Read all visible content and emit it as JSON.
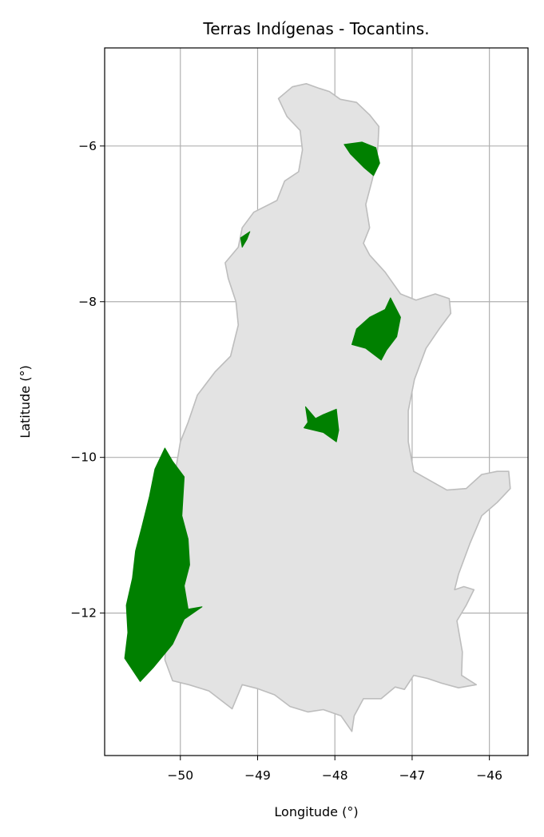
{
  "chart_data": {
    "type": "map",
    "title": "Terras Indígenas - Tocantins.",
    "xlabel": "Longitude (°)",
    "ylabel": "Latitude (°)",
    "xlim": [
      -50.98,
      -45.5
    ],
    "ylim": [
      -13.83,
      -4.74
    ],
    "xticks": [
      -50,
      -49,
      -48,
      -47,
      -46
    ],
    "xtick_labels": [
      "−50",
      "−49",
      "−48",
      "−47",
      "−46"
    ],
    "yticks": [
      -6,
      -8,
      -10,
      -12
    ],
    "ytick_labels": [
      "−6",
      "−8",
      "−10",
      "−12"
    ],
    "grid": true,
    "state_fill": "#e3e3e3",
    "state_edge": "#bdbdbd",
    "territory_fill": "#008000",
    "state_outline": [
      [
        -48.73,
        -5.39
      ],
      [
        -48.55,
        -5.24
      ],
      [
        -48.37,
        -5.2
      ],
      [
        -48.2,
        -5.26
      ],
      [
        -48.07,
        -5.3
      ],
      [
        -47.93,
        -5.4
      ],
      [
        -47.72,
        -5.44
      ],
      [
        -47.55,
        -5.6
      ],
      [
        -47.43,
        -5.75
      ],
      [
        -47.44,
        -5.95
      ],
      [
        -47.46,
        -6.2
      ],
      [
        -47.52,
        -6.45
      ],
      [
        -47.6,
        -6.75
      ],
      [
        -47.55,
        -7.05
      ],
      [
        -47.63,
        -7.25
      ],
      [
        -47.55,
        -7.4
      ],
      [
        -47.35,
        -7.62
      ],
      [
        -47.15,
        -7.9
      ],
      [
        -46.95,
        -7.98
      ],
      [
        -46.7,
        -7.9
      ],
      [
        -46.52,
        -7.96
      ],
      [
        -46.5,
        -8.15
      ],
      [
        -46.65,
        -8.35
      ],
      [
        -46.82,
        -8.6
      ],
      [
        -46.97,
        -9.0
      ],
      [
        -47.05,
        -9.4
      ],
      [
        -47.05,
        -9.8
      ],
      [
        -46.98,
        -10.18
      ],
      [
        -46.55,
        -10.42
      ],
      [
        -46.3,
        -10.4
      ],
      [
        -46.1,
        -10.22
      ],
      [
        -45.9,
        -10.18
      ],
      [
        -45.75,
        -10.18
      ],
      [
        -45.73,
        -10.4
      ],
      [
        -45.9,
        -10.58
      ],
      [
        -46.1,
        -10.75
      ],
      [
        -46.25,
        -11.1
      ],
      [
        -46.4,
        -11.5
      ],
      [
        -46.45,
        -11.7
      ],
      [
        -46.33,
        -11.66
      ],
      [
        -46.2,
        -11.7
      ],
      [
        -46.3,
        -11.9
      ],
      [
        -46.42,
        -12.1
      ],
      [
        -46.35,
        -12.5
      ],
      [
        -46.36,
        -12.8
      ],
      [
        -46.17,
        -12.92
      ],
      [
        -46.4,
        -12.96
      ],
      [
        -46.62,
        -12.9
      ],
      [
        -46.8,
        -12.84
      ],
      [
        -46.98,
        -12.8
      ],
      [
        -47.1,
        -12.98
      ],
      [
        -47.22,
        -12.95
      ],
      [
        -47.4,
        -13.1
      ],
      [
        -47.63,
        -13.1
      ],
      [
        -47.75,
        -13.32
      ],
      [
        -47.78,
        -13.52
      ],
      [
        -47.92,
        -13.32
      ],
      [
        -48.15,
        -13.24
      ],
      [
        -48.35,
        -13.27
      ],
      [
        -48.58,
        -13.2
      ],
      [
        -48.78,
        -13.05
      ],
      [
        -49.0,
        -12.97
      ],
      [
        -49.2,
        -12.92
      ],
      [
        -49.33,
        -13.23
      ],
      [
        -49.63,
        -13.0
      ],
      [
        -49.89,
        -12.92
      ],
      [
        -50.1,
        -12.87
      ],
      [
        -50.2,
        -12.6
      ],
      [
        -50.18,
        -12.3
      ],
      [
        -50.22,
        -12.0
      ],
      [
        -50.18,
        -11.5
      ],
      [
        -50.1,
        -11.2
      ],
      [
        -50.12,
        -10.9
      ],
      [
        -50.1,
        -10.5
      ],
      [
        -50.05,
        -10.1
      ],
      [
        -50.0,
        -9.8
      ],
      [
        -49.9,
        -9.55
      ],
      [
        -49.78,
        -9.2
      ],
      [
        -49.55,
        -8.9
      ],
      [
        -49.35,
        -8.7
      ],
      [
        -49.25,
        -8.3
      ],
      [
        -49.28,
        -8.0
      ],
      [
        -49.38,
        -7.7
      ],
      [
        -49.42,
        -7.5
      ],
      [
        -49.25,
        -7.3
      ],
      [
        -49.2,
        -7.05
      ],
      [
        -49.05,
        -6.85
      ],
      [
        -48.75,
        -6.7
      ],
      [
        -48.65,
        -6.45
      ],
      [
        -48.47,
        -6.33
      ],
      [
        -48.42,
        -6.05
      ],
      [
        -48.45,
        -5.8
      ],
      [
        -48.62,
        -5.62
      ],
      [
        -48.73,
        -5.39
      ]
    ],
    "indigenous_territories": [
      [
        [
          -47.88,
          -5.98
        ],
        [
          -47.65,
          -5.95
        ],
        [
          -47.47,
          -6.02
        ],
        [
          -47.42,
          -6.22
        ],
        [
          -47.5,
          -6.38
        ],
        [
          -47.62,
          -6.28
        ],
        [
          -47.8,
          -6.1
        ]
      ],
      [
        [
          -47.72,
          -8.35
        ],
        [
          -47.55,
          -8.2
        ],
        [
          -47.35,
          -8.1
        ],
        [
          -47.28,
          -7.95
        ],
        [
          -47.15,
          -8.2
        ],
        [
          -47.2,
          -8.45
        ],
        [
          -47.33,
          -8.62
        ],
        [
          -47.4,
          -8.75
        ],
        [
          -47.6,
          -8.6
        ],
        [
          -47.78,
          -8.55
        ]
      ],
      [
        [
          -48.38,
          -9.35
        ],
        [
          -48.25,
          -9.5
        ],
        [
          -48.15,
          -9.45
        ],
        [
          -47.98,
          -9.38
        ],
        [
          -47.95,
          -9.65
        ],
        [
          -47.98,
          -9.8
        ],
        [
          -48.15,
          -9.68
        ],
        [
          -48.4,
          -9.62
        ],
        [
          -48.35,
          -9.55
        ]
      ],
      [
        [
          -49.1,
          -7.1
        ],
        [
          -49.22,
          -7.18
        ],
        [
          -49.2,
          -7.3
        ],
        [
          -49.14,
          -7.2
        ]
      ],
      [
        [
          -50.2,
          -9.88
        ],
        [
          -50.1,
          -10.05
        ],
        [
          -49.95,
          -10.25
        ],
        [
          -49.98,
          -10.75
        ],
        [
          -49.9,
          -11.05
        ],
        [
          -49.88,
          -11.38
        ],
        [
          -49.95,
          -11.65
        ],
        [
          -49.9,
          -11.95
        ],
        [
          -49.72,
          -11.92
        ],
        [
          -49.95,
          -12.08
        ],
        [
          -50.1,
          -12.4
        ],
        [
          -50.35,
          -12.7
        ],
        [
          -50.52,
          -12.88
        ],
        [
          -50.72,
          -12.58
        ],
        [
          -50.68,
          -12.25
        ],
        [
          -50.7,
          -11.9
        ],
        [
          -50.62,
          -11.55
        ],
        [
          -50.58,
          -11.2
        ],
        [
          -50.5,
          -10.9
        ],
        [
          -50.4,
          -10.5
        ],
        [
          -50.33,
          -10.15
        ]
      ]
    ]
  }
}
